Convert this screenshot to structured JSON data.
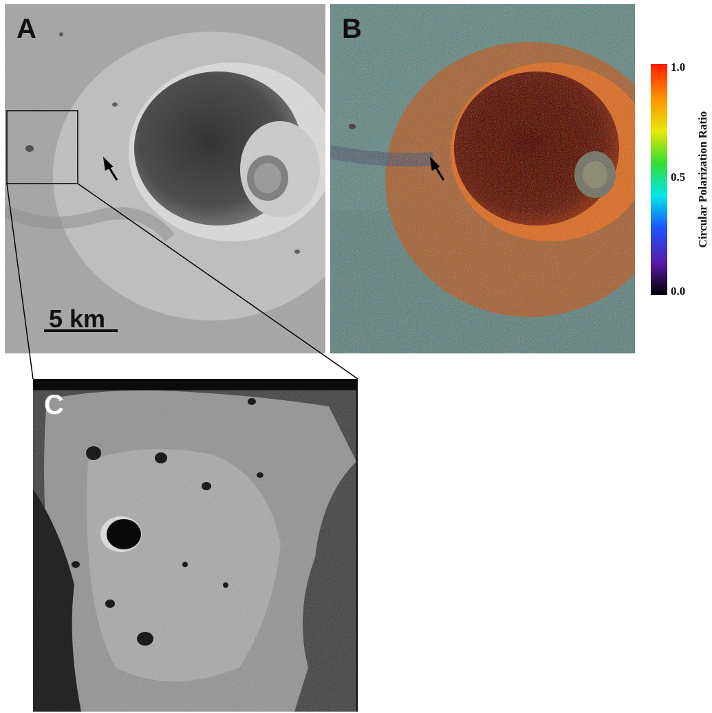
{
  "panels": {
    "a": {
      "letter": "A",
      "scale_bar_label": "5 km"
    },
    "b": {
      "letter": "B"
    },
    "c": {
      "letter": "C"
    }
  },
  "colorbar": {
    "title": "Circular Polarization Ratio",
    "max_label": "1.0",
    "mid_label": "0.5",
    "min_label": "0.0",
    "colors": [
      "#ff1a00",
      "#ff8c00",
      "#e8e800",
      "#33dd33",
      "#00e8e8",
      "#1a55ff",
      "#5a1aa8",
      "#000000"
    ]
  }
}
